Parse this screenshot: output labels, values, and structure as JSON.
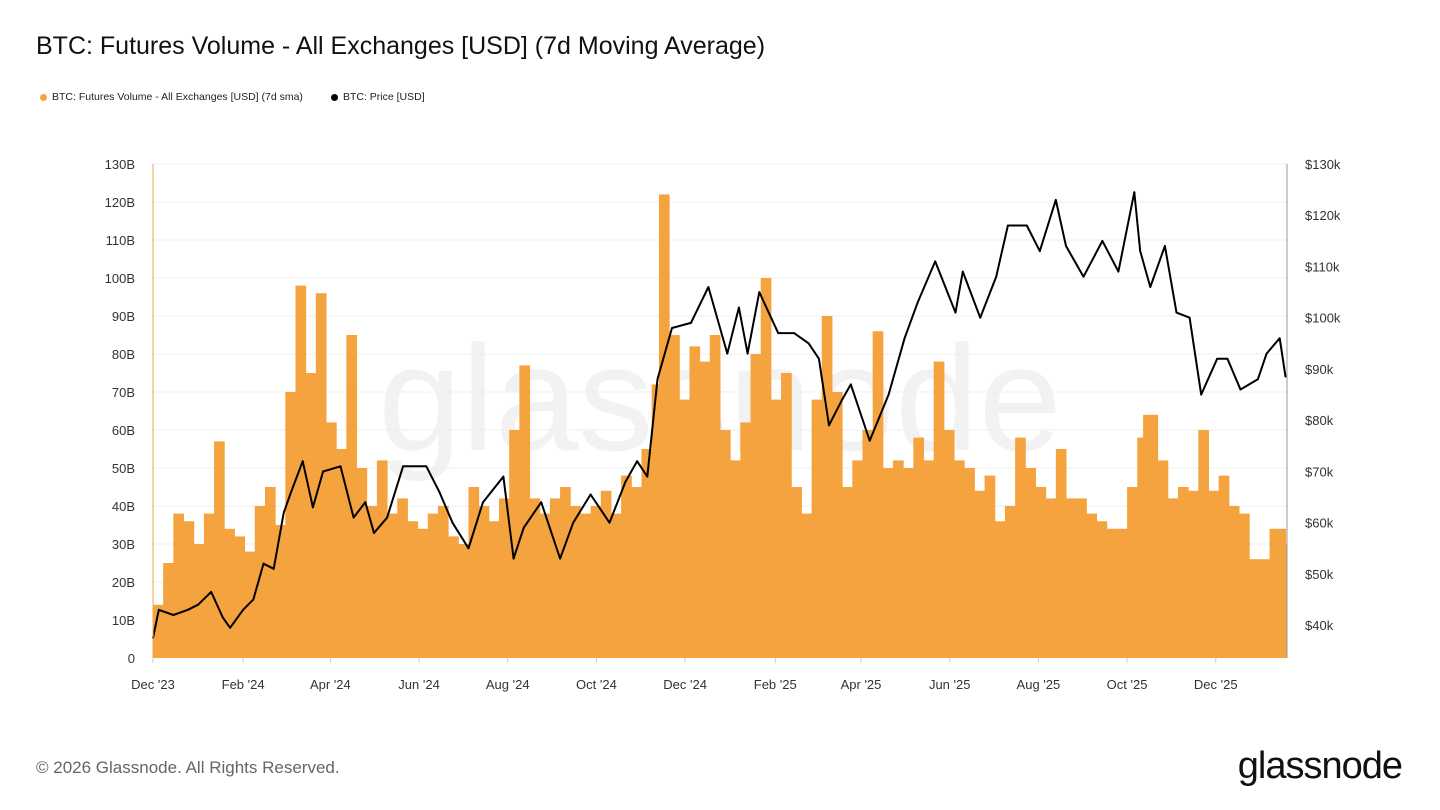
{
  "chart_data": {
    "type": "bar",
    "title": "BTC: Futures Volume - All Exchanges [USD] (7d Moving Average)",
    "legend_placement": "top-left",
    "grid": true,
    "watermark": "glassnode",
    "xlim": [
      "2023-12-01",
      "2026-01-19"
    ],
    "x_ticks": [
      {
        "date": "2023-12-01",
        "label": "Dec '23"
      },
      {
        "date": "2024-02-01",
        "label": "Feb '24"
      },
      {
        "date": "2024-04-01",
        "label": "Apr '24"
      },
      {
        "date": "2024-06-01",
        "label": "Jun '24"
      },
      {
        "date": "2024-08-01",
        "label": "Aug '24"
      },
      {
        "date": "2024-10-01",
        "label": "Oct '24"
      },
      {
        "date": "2024-12-01",
        "label": "Dec '24"
      },
      {
        "date": "2025-02-01",
        "label": "Feb '25"
      },
      {
        "date": "2025-04-01",
        "label": "Apr '25"
      },
      {
        "date": "2025-06-01",
        "label": "Jun '25"
      },
      {
        "date": "2025-08-01",
        "label": "Aug '25"
      },
      {
        "date": "2025-10-01",
        "label": "Oct '25"
      },
      {
        "date": "2025-12-01",
        "label": "Dec '25"
      }
    ],
    "y_left": {
      "ylim": [
        0,
        130
      ],
      "ticks": [
        0,
        10,
        20,
        30,
        40,
        50,
        60,
        70,
        80,
        90,
        100,
        110,
        120,
        130
      ],
      "tick_labels": [
        "0",
        "10B",
        "20B",
        "30B",
        "40B",
        "50B",
        "60B",
        "70B",
        "80B",
        "90B",
        "100B",
        "110B",
        "120B",
        "130B"
      ]
    },
    "y_right": {
      "ylim": [
        33.6,
        130
      ],
      "ticks": [
        40,
        50,
        60,
        70,
        80,
        90,
        100,
        110,
        120,
        130
      ],
      "tick_labels": [
        "$40k",
        "$50k",
        "$60k",
        "$70k",
        "$80k",
        "$90k",
        "$100k",
        "$110k",
        "$120k",
        "$130k"
      ]
    },
    "series": [
      {
        "name": "BTC: Futures Volume - All Exchanges [USD] (7d sma)",
        "type": "bar",
        "axis": "left",
        "unit": "B USD",
        "color": "#F5A33F",
        "points": [
          [
            "2023-12-01",
            14
          ],
          [
            "2023-12-08",
            25
          ],
          [
            "2023-12-15",
            38
          ],
          [
            "2023-12-22",
            36
          ],
          [
            "2023-12-29",
            30
          ],
          [
            "2024-01-05",
            38
          ],
          [
            "2024-01-12",
            57
          ],
          [
            "2024-01-19",
            34
          ],
          [
            "2024-01-26",
            32
          ],
          [
            "2024-02-02",
            28
          ],
          [
            "2024-02-09",
            40
          ],
          [
            "2024-02-16",
            45
          ],
          [
            "2024-02-23",
            35
          ],
          [
            "2024-03-01",
            70
          ],
          [
            "2024-03-08",
            98
          ],
          [
            "2024-03-15",
            75
          ],
          [
            "2024-03-22",
            96
          ],
          [
            "2024-03-29",
            62
          ],
          [
            "2024-04-05",
            55
          ],
          [
            "2024-04-12",
            85
          ],
          [
            "2024-04-19",
            50
          ],
          [
            "2024-04-26",
            40
          ],
          [
            "2024-05-03",
            52
          ],
          [
            "2024-05-10",
            38
          ],
          [
            "2024-05-17",
            42
          ],
          [
            "2024-05-24",
            36
          ],
          [
            "2024-05-31",
            34
          ],
          [
            "2024-06-07",
            38
          ],
          [
            "2024-06-14",
            40
          ],
          [
            "2024-06-21",
            32
          ],
          [
            "2024-06-28",
            30
          ],
          [
            "2024-07-05",
            45
          ],
          [
            "2024-07-12",
            40
          ],
          [
            "2024-07-19",
            36
          ],
          [
            "2024-07-26",
            42
          ],
          [
            "2024-08-02",
            60
          ],
          [
            "2024-08-09",
            77
          ],
          [
            "2024-08-16",
            42
          ],
          [
            "2024-08-23",
            38
          ],
          [
            "2024-08-30",
            42
          ],
          [
            "2024-09-06",
            45
          ],
          [
            "2024-09-13",
            40
          ],
          [
            "2024-09-20",
            38
          ],
          [
            "2024-09-27",
            40
          ],
          [
            "2024-10-04",
            44
          ],
          [
            "2024-10-11",
            38
          ],
          [
            "2024-10-18",
            48
          ],
          [
            "2024-10-25",
            45
          ],
          [
            "2024-11-01",
            55
          ],
          [
            "2024-11-08",
            72
          ],
          [
            "2024-11-13",
            122
          ],
          [
            "2024-11-20",
            85
          ],
          [
            "2024-11-27",
            68
          ],
          [
            "2024-12-04",
            82
          ],
          [
            "2024-12-11",
            78
          ],
          [
            "2024-12-18",
            85
          ],
          [
            "2024-12-25",
            60
          ],
          [
            "2025-01-01",
            52
          ],
          [
            "2025-01-08",
            62
          ],
          [
            "2025-01-15",
            80
          ],
          [
            "2025-01-22",
            100
          ],
          [
            "2025-01-29",
            68
          ],
          [
            "2025-02-05",
            75
          ],
          [
            "2025-02-12",
            45
          ],
          [
            "2025-02-19",
            38
          ],
          [
            "2025-02-26",
            68
          ],
          [
            "2025-03-05",
            90
          ],
          [
            "2025-03-12",
            70
          ],
          [
            "2025-03-19",
            45
          ],
          [
            "2025-03-26",
            52
          ],
          [
            "2025-04-02",
            60
          ],
          [
            "2025-04-09",
            86
          ],
          [
            "2025-04-16",
            50
          ],
          [
            "2025-04-23",
            52
          ],
          [
            "2025-04-30",
            50
          ],
          [
            "2025-05-07",
            58
          ],
          [
            "2025-05-14",
            52
          ],
          [
            "2025-05-21",
            78
          ],
          [
            "2025-05-28",
            60
          ],
          [
            "2025-06-04",
            52
          ],
          [
            "2025-06-11",
            50
          ],
          [
            "2025-06-18",
            44
          ],
          [
            "2025-06-25",
            48
          ],
          [
            "2025-07-02",
            36
          ],
          [
            "2025-07-09",
            40
          ],
          [
            "2025-07-16",
            58
          ],
          [
            "2025-07-23",
            50
          ],
          [
            "2025-07-30",
            45
          ],
          [
            "2025-08-06",
            42
          ],
          [
            "2025-08-13",
            55
          ],
          [
            "2025-08-20",
            42
          ],
          [
            "2025-08-27",
            42
          ],
          [
            "2025-09-03",
            38
          ],
          [
            "2025-09-10",
            36
          ],
          [
            "2025-09-17",
            34
          ],
          [
            "2025-09-24",
            34
          ],
          [
            "2025-10-01",
            45
          ],
          [
            "2025-10-08",
            58
          ],
          [
            "2025-10-12",
            64
          ],
          [
            "2025-10-22",
            52
          ],
          [
            "2025-10-29",
            42
          ],
          [
            "2025-11-05",
            45
          ],
          [
            "2025-11-12",
            44
          ],
          [
            "2025-11-19",
            60
          ],
          [
            "2025-11-26",
            44
          ],
          [
            "2025-12-03",
            48
          ],
          [
            "2025-12-10",
            40
          ],
          [
            "2025-12-17",
            38
          ],
          [
            "2025-12-24",
            26
          ],
          [
            "2025-12-31",
            26
          ],
          [
            "2026-01-07",
            34
          ],
          [
            "2026-01-14",
            34
          ],
          [
            "2026-01-18",
            30
          ]
        ]
      },
      {
        "name": "BTC: Price [USD]",
        "type": "line",
        "axis": "right",
        "unit": "k USD",
        "color": "#000000",
        "points": [
          [
            "2023-12-01",
            37.5
          ],
          [
            "2023-12-05",
            43
          ],
          [
            "2023-12-15",
            42
          ],
          [
            "2023-12-25",
            43
          ],
          [
            "2024-01-01",
            44
          ],
          [
            "2024-01-10",
            46.5
          ],
          [
            "2024-01-18",
            41.5
          ],
          [
            "2024-01-23",
            39.5
          ],
          [
            "2024-02-01",
            43
          ],
          [
            "2024-02-08",
            45
          ],
          [
            "2024-02-15",
            52
          ],
          [
            "2024-02-22",
            51
          ],
          [
            "2024-02-29",
            62
          ],
          [
            "2024-03-05",
            66
          ],
          [
            "2024-03-13",
            72
          ],
          [
            "2024-03-20",
            63
          ],
          [
            "2024-03-27",
            70
          ],
          [
            "2024-04-08",
            71
          ],
          [
            "2024-04-17",
            61
          ],
          [
            "2024-04-25",
            64
          ],
          [
            "2024-05-01",
            58
          ],
          [
            "2024-05-10",
            61
          ],
          [
            "2024-05-21",
            71
          ],
          [
            "2024-06-06",
            71
          ],
          [
            "2024-06-15",
            66
          ],
          [
            "2024-06-24",
            60
          ],
          [
            "2024-07-05",
            55
          ],
          [
            "2024-07-15",
            64
          ],
          [
            "2024-07-29",
            69
          ],
          [
            "2024-08-05",
            53
          ],
          [
            "2024-08-12",
            59
          ],
          [
            "2024-08-24",
            64
          ],
          [
            "2024-09-06",
            53
          ],
          [
            "2024-09-15",
            60
          ],
          [
            "2024-09-27",
            65.5
          ],
          [
            "2024-10-10",
            60
          ],
          [
            "2024-10-21",
            68
          ],
          [
            "2024-10-29",
            72
          ],
          [
            "2024-11-05",
            69
          ],
          [
            "2024-11-12",
            88
          ],
          [
            "2024-11-22",
            98
          ],
          [
            "2024-12-05",
            99
          ],
          [
            "2024-12-17",
            106
          ],
          [
            "2024-12-30",
            93
          ],
          [
            "2025-01-07",
            102
          ],
          [
            "2025-01-13",
            93
          ],
          [
            "2025-01-21",
            105
          ],
          [
            "2025-02-03",
            97
          ],
          [
            "2025-02-14",
            97
          ],
          [
            "2025-02-24",
            95
          ],
          [
            "2025-03-03",
            92
          ],
          [
            "2025-03-10",
            79
          ],
          [
            "2025-03-19",
            84
          ],
          [
            "2025-03-25",
            87
          ],
          [
            "2025-04-07",
            76
          ],
          [
            "2025-04-20",
            85
          ],
          [
            "2025-05-01",
            96
          ],
          [
            "2025-05-10",
            103
          ],
          [
            "2025-05-22",
            111
          ],
          [
            "2025-06-05",
            101
          ],
          [
            "2025-06-10",
            109
          ],
          [
            "2025-06-22",
            100
          ],
          [
            "2025-07-03",
            108
          ],
          [
            "2025-07-11",
            118
          ],
          [
            "2025-07-24",
            118
          ],
          [
            "2025-08-02",
            113
          ],
          [
            "2025-08-13",
            123
          ],
          [
            "2025-08-20",
            114
          ],
          [
            "2025-09-01",
            108
          ],
          [
            "2025-09-14",
            115
          ],
          [
            "2025-09-25",
            109
          ],
          [
            "2025-10-06",
            124.5
          ],
          [
            "2025-10-10",
            113
          ],
          [
            "2025-10-17",
            106
          ],
          [
            "2025-10-27",
            114
          ],
          [
            "2025-11-04",
            101
          ],
          [
            "2025-11-13",
            100
          ],
          [
            "2025-11-21",
            85
          ],
          [
            "2025-12-02",
            92
          ],
          [
            "2025-12-09",
            92
          ],
          [
            "2025-12-18",
            86
          ],
          [
            "2025-12-30",
            88
          ],
          [
            "2026-01-05",
            93
          ],
          [
            "2026-01-14",
            96
          ],
          [
            "2026-01-18",
            88.5
          ]
        ]
      }
    ]
  },
  "footer": {
    "copyright": "© 2026 Glassnode. All Rights Reserved.",
    "logo": "glassnode"
  }
}
